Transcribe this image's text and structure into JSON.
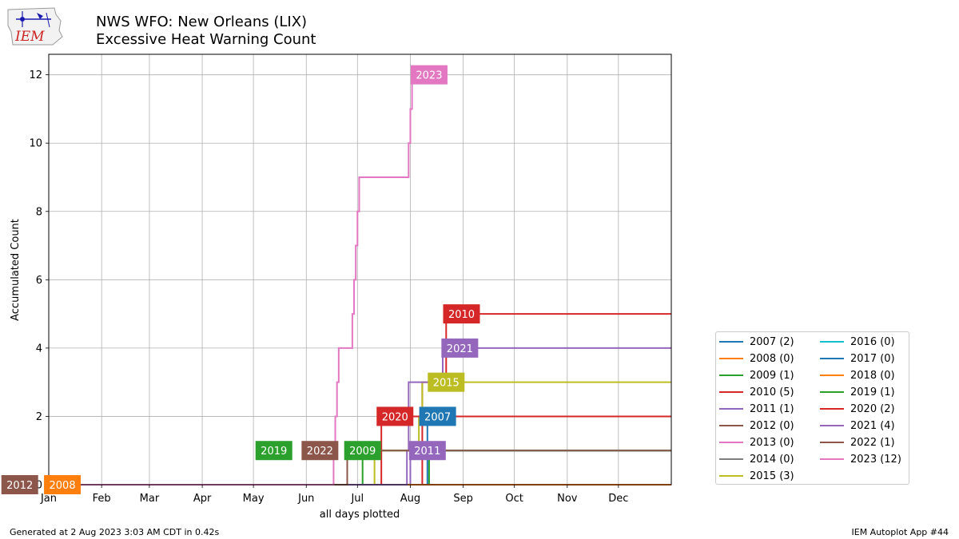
{
  "header": {
    "title_line1": "NWS WFO: New Orleans (LIX)",
    "title_line2": "Excessive Heat Warning Count"
  },
  "logo": {
    "text": "IEM",
    "icon": "iem-logo-icon"
  },
  "footer": {
    "left": "Generated at 2 Aug 2023 3:03 AM CDT in 0.42s",
    "right": "IEM Autoplot App #44"
  },
  "chart_data": {
    "type": "line",
    "step": true,
    "title": "NWS WFO: New Orleans (LIX) Excessive Heat Warning Count",
    "xlabel": "all days plotted",
    "ylabel": "Accumulated Count",
    "xlim": [
      1,
      366
    ],
    "ylim": [
      0,
      12.6
    ],
    "yticks": [
      0,
      2,
      4,
      6,
      8,
      10,
      12
    ],
    "grid": true,
    "xticks": [
      {
        "label": "Jan",
        "doy": 1
      },
      {
        "label": "Feb",
        "doy": 32
      },
      {
        "label": "Mar",
        "doy": 60
      },
      {
        "label": "Apr",
        "doy": 91
      },
      {
        "label": "May",
        "doy": 121
      },
      {
        "label": "Jun",
        "doy": 152
      },
      {
        "label": "Jul",
        "doy": 182
      },
      {
        "label": "Aug",
        "doy": 213
      },
      {
        "label": "Sep",
        "doy": 244
      },
      {
        "label": "Oct",
        "doy": 274
      },
      {
        "label": "Nov",
        "doy": 305
      },
      {
        "label": "Dec",
        "doy": 335
      }
    ],
    "legend_position": "lower-right outside",
    "series": [
      {
        "name": "2007",
        "legend": "2007 (2)",
        "color": "#1f77b4",
        "total": 2,
        "steps": [
          [
            223,
            2
          ]
        ],
        "label_doy": 229,
        "label_y": 2
      },
      {
        "name": "2008",
        "legend": "2008 (0)",
        "color": "#ff7f0e",
        "total": 0,
        "steps": [],
        "label_doy": 9,
        "label_y": 0
      },
      {
        "name": "2009",
        "legend": "2009 (1)",
        "color": "#2ca02c",
        "total": 1,
        "steps": [
          [
            224,
            1
          ]
        ],
        "label_doy": 185,
        "label_y": 1
      },
      {
        "name": "2010",
        "legend": "2010 (5)",
        "color": "#d62728",
        "total": 5,
        "steps": [
          [
            220,
            3
          ],
          [
            234,
            5
          ]
        ],
        "label_doy": 243,
        "label_y": 5
      },
      {
        "name": "2011",
        "legend": "2011 (1)",
        "color": "#9467bd",
        "total": 1,
        "steps": [
          [
            213,
            1
          ]
        ],
        "label_doy": 223,
        "label_y": 1
      },
      {
        "name": "2012",
        "legend": "2012 (0)",
        "color": "#8c564b",
        "total": 0,
        "steps": [],
        "label_doy": -16,
        "label_y": 0
      },
      {
        "name": "2013",
        "legend": "2013 (0)",
        "color": "#e377c2",
        "total": 0,
        "steps": [],
        "label_doy": null,
        "label_y": 0
      },
      {
        "name": "2014",
        "legend": "2014 (0)",
        "color": "#7f7f7f",
        "total": 0,
        "steps": [],
        "label_doy": null,
        "label_y": 0
      },
      {
        "name": "2015",
        "legend": "2015 (3)",
        "color": "#bcbd22",
        "total": 3,
        "steps": [
          [
            192,
            1
          ],
          [
            218,
            2
          ],
          [
            220,
            3
          ]
        ],
        "label_doy": 234,
        "label_y": 3
      },
      {
        "name": "2016",
        "legend": "2016 (0)",
        "color": "#17becf",
        "total": 0,
        "steps": [],
        "label_doy": null,
        "label_y": 0
      },
      {
        "name": "2017",
        "legend": "2017 (0)",
        "color": "#1f77b4",
        "total": 0,
        "steps": [],
        "label_doy": null,
        "label_y": 0
      },
      {
        "name": "2018",
        "legend": "2018 (0)",
        "color": "#ff7f0e",
        "total": 0,
        "steps": [],
        "label_doy": null,
        "label_y": 0
      },
      {
        "name": "2019",
        "legend": "2019 (1)",
        "color": "#2ca02c",
        "total": 1,
        "steps": [
          [
            185,
            1
          ]
        ],
        "label_doy": 133,
        "label_y": 1
      },
      {
        "name": "2020",
        "legend": "2020 (2)",
        "color": "#d62728",
        "total": 2,
        "steps": [
          [
            196,
            2
          ]
        ],
        "label_doy": 204,
        "label_y": 2
      },
      {
        "name": "2021",
        "legend": "2021 (4)",
        "color": "#9467bd",
        "total": 4,
        "steps": [
          [
            211,
            1
          ],
          [
            212,
            3
          ],
          [
            232,
            4
          ]
        ],
        "label_doy": 242,
        "label_y": 4
      },
      {
        "name": "2022",
        "legend": "2022 (1)",
        "color": "#8c564b",
        "total": 1,
        "steps": [
          [
            176,
            1
          ]
        ],
        "label_doy": 160,
        "label_y": 1
      },
      {
        "name": "2023",
        "legend": "2023 (12)",
        "color": "#e377c2",
        "total": 12,
        "steps": [
          [
            168,
            1
          ],
          [
            169,
            2
          ],
          [
            170,
            3
          ],
          [
            171,
            4
          ],
          [
            179,
            5
          ],
          [
            180,
            6
          ],
          [
            181,
            7
          ],
          [
            182,
            8
          ],
          [
            183,
            9
          ],
          [
            212,
            10
          ],
          [
            213,
            11
          ],
          [
            214,
            12
          ]
        ],
        "last_doy": 214,
        "label_doy": 224,
        "label_y": 12
      }
    ]
  }
}
